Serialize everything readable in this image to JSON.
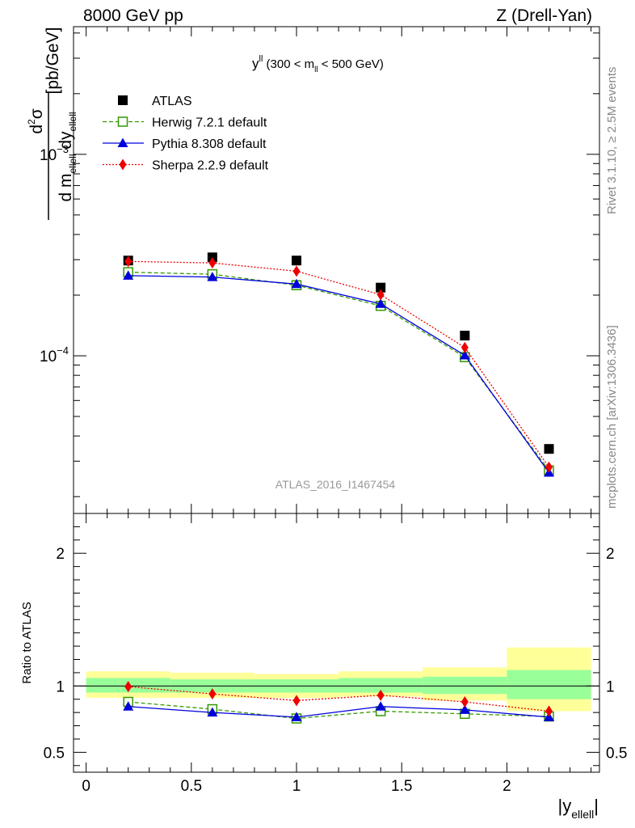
{
  "header": {
    "left": "8000 GeV pp",
    "right": "Z (Drell-Yan)"
  },
  "side_labels": {
    "rivet": "Rivet 3.1.10, ≥ 2.5M events",
    "mcplots": "mcplots.cern.ch [arXiv:1306.3436]"
  },
  "watermark": "ATLAS_2016_I1467454",
  "chart_data": [
    {
      "type": "scatter",
      "panel": "main",
      "title": {
        "base": "y",
        "sup": "ll",
        "open": " (300 < m",
        "sub": "ll",
        "close": " < 500 GeV)"
      },
      "ylabel": {
        "num_d": "d",
        "num_sup": "2",
        "num_sigma": "σ",
        "den_dm": "d m",
        "den_m_sub": "ellell",
        "den_dy": " dy",
        "den_y_sub": "ellell",
        "unit": "[pb/GeV]"
      },
      "yscale": "log",
      "ylim": [
        1.65e-05,
        0.0043
      ],
      "xlim": [
        -0.06,
        2.44
      ],
      "y_ticks": [
        {
          "value": 0.0001,
          "base": "10",
          "exp": "−4"
        },
        {
          "value": 0.001,
          "base": "10",
          "exp": "−3"
        }
      ],
      "legend_position": "top-left",
      "x": [
        0.2,
        0.6,
        1.0,
        1.4,
        1.8,
        2.2
      ],
      "series": [
        {
          "name": "ATLAS",
          "color": "#000000",
          "marker": "square-filled",
          "line": "none",
          "values": [
            0.000297,
            0.000308,
            0.000297,
            0.000218,
            0.000126,
            3.45e-05
          ]
        },
        {
          "name": "Herwig 7.2.1 default",
          "color": "#339900",
          "marker": "square-open",
          "line": "dashed",
          "values": [
            0.00026,
            0.000254,
            0.000224,
            0.000177,
            9.85e-05,
            2.7e-05
          ]
        },
        {
          "name": "Pythia 8.308 default",
          "color": "#0000dd",
          "marker": "triangle-filled",
          "line": "solid",
          "values": [
            0.00025,
            0.000246,
            0.000227,
            0.000181,
            0.0001005,
            2.63e-05
          ]
        },
        {
          "name": "Sherpa 2.2.9 default",
          "color": "#ee0000",
          "marker": "diamond-filled",
          "line": "dotted",
          "values": [
            0.000294,
            0.000289,
            0.000263,
            0.000201,
            0.00011,
            2.8e-05
          ]
        }
      ]
    },
    {
      "type": "scatter",
      "panel": "ratio",
      "ylabel": "Ratio to ATLAS",
      "xlabel": {
        "text": "|y",
        "sub": "ellell",
        "close": "|"
      },
      "xlim": [
        -0.06,
        2.44
      ],
      "ylim": [
        0.35,
        2.3
      ],
      "x_ticks": [
        0,
        0.5,
        1,
        1.5,
        2
      ],
      "x_tick_labels": [
        "0",
        "0.5",
        "1",
        "1.5",
        "2"
      ],
      "y_ticks": [
        0.5,
        1,
        2
      ],
      "y_tick_labels": [
        "0.5",
        "1",
        "2"
      ],
      "bands": {
        "x_edges": [
          0,
          0.4,
          0.8,
          1.2,
          1.6,
          2.0,
          2.4
        ],
        "stat_color": "#99ff99",
        "total_color": "#ffff99",
        "stat": [
          [
            0.95,
            1.06
          ],
          [
            0.95,
            1.05
          ],
          [
            0.95,
            1.05
          ],
          [
            0.95,
            1.06
          ],
          [
            0.94,
            1.07
          ],
          [
            0.9,
            1.12
          ]
        ],
        "total": [
          [
            0.91,
            1.11
          ],
          [
            0.91,
            1.1
          ],
          [
            0.91,
            1.09
          ],
          [
            0.92,
            1.11
          ],
          [
            0.89,
            1.14
          ],
          [
            0.81,
            1.29
          ]
        ]
      },
      "x": [
        0.2,
        0.6,
        1.0,
        1.4,
        1.8,
        2.2
      ],
      "series": [
        {
          "name": "Herwig 7.2.1 default",
          "color": "#339900",
          "marker": "square-open",
          "line": "dashed",
          "values": [
            0.88,
            0.825,
            0.755,
            0.81,
            0.79,
            0.77
          ]
        },
        {
          "name": "Pythia 8.308 default",
          "color": "#0000dd",
          "marker": "triangle-filled",
          "line": "solid",
          "values": [
            0.845,
            0.8,
            0.765,
            0.845,
            0.82,
            0.765
          ]
        },
        {
          "name": "Sherpa 2.2.9 default",
          "color": "#ee0000",
          "marker": "diamond-filled",
          "line": "dotted",
          "values": [
            0.995,
            0.94,
            0.89,
            0.93,
            0.88,
            0.81
          ]
        }
      ]
    }
  ]
}
